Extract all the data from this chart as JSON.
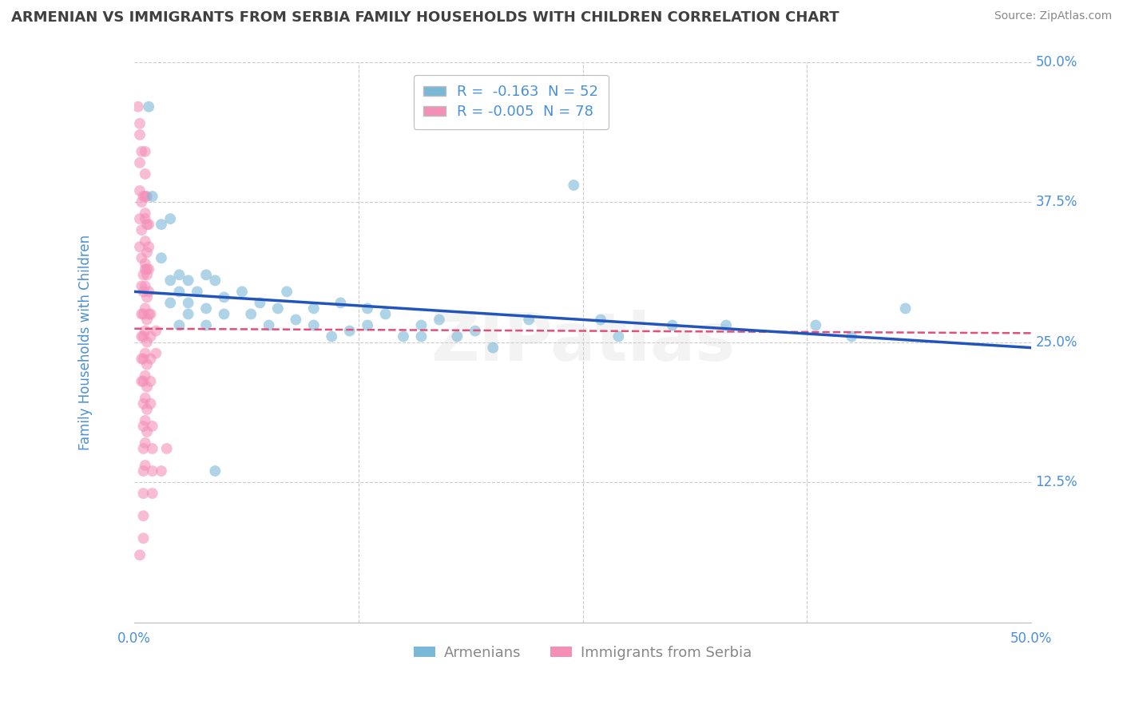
{
  "title": "ARMENIAN VS IMMIGRANTS FROM SERBIA FAMILY HOUSEHOLDS WITH CHILDREN CORRELATION CHART",
  "source": "Source: ZipAtlas.com",
  "ylabel": "Family Households with Children",
  "xlim": [
    0,
    0.5
  ],
  "ylim": [
    0,
    0.5
  ],
  "yticks": [
    0.125,
    0.25,
    0.375,
    0.5
  ],
  "ytick_labels": [
    "12.5%",
    "25.0%",
    "37.5%",
    "50.0%"
  ],
  "legend_entries": [
    {
      "label": "R =  -0.163  N = 52",
      "color": "#a8c8e8"
    },
    {
      "label": "R = -0.005  N = 78",
      "color": "#f9b8cc"
    }
  ],
  "armenian_scatter": [
    [
      0.008,
      0.46
    ],
    [
      0.01,
      0.38
    ],
    [
      0.015,
      0.355
    ],
    [
      0.015,
      0.325
    ],
    [
      0.02,
      0.36
    ],
    [
      0.02,
      0.305
    ],
    [
      0.02,
      0.285
    ],
    [
      0.025,
      0.31
    ],
    [
      0.025,
      0.295
    ],
    [
      0.025,
      0.265
    ],
    [
      0.03,
      0.305
    ],
    [
      0.03,
      0.285
    ],
    [
      0.03,
      0.275
    ],
    [
      0.035,
      0.295
    ],
    [
      0.04,
      0.31
    ],
    [
      0.04,
      0.28
    ],
    [
      0.04,
      0.265
    ],
    [
      0.045,
      0.305
    ],
    [
      0.05,
      0.29
    ],
    [
      0.05,
      0.275
    ],
    [
      0.06,
      0.295
    ],
    [
      0.065,
      0.275
    ],
    [
      0.07,
      0.285
    ],
    [
      0.075,
      0.265
    ],
    [
      0.08,
      0.28
    ],
    [
      0.085,
      0.295
    ],
    [
      0.09,
      0.27
    ],
    [
      0.1,
      0.28
    ],
    [
      0.1,
      0.265
    ],
    [
      0.11,
      0.255
    ],
    [
      0.115,
      0.285
    ],
    [
      0.12,
      0.26
    ],
    [
      0.13,
      0.28
    ],
    [
      0.13,
      0.265
    ],
    [
      0.14,
      0.275
    ],
    [
      0.15,
      0.255
    ],
    [
      0.16,
      0.265
    ],
    [
      0.16,
      0.255
    ],
    [
      0.17,
      0.27
    ],
    [
      0.18,
      0.255
    ],
    [
      0.19,
      0.26
    ],
    [
      0.2,
      0.245
    ],
    [
      0.22,
      0.27
    ],
    [
      0.26,
      0.27
    ],
    [
      0.27,
      0.255
    ],
    [
      0.3,
      0.265
    ],
    [
      0.33,
      0.265
    ],
    [
      0.38,
      0.265
    ],
    [
      0.4,
      0.255
    ],
    [
      0.43,
      0.28
    ],
    [
      0.245,
      0.39
    ],
    [
      0.045,
      0.135
    ]
  ],
  "armenia_line_x": [
    0.0,
    0.5
  ],
  "armenia_line_y": [
    0.295,
    0.245
  ],
  "serbia_scatter": [
    [
      0.002,
      0.46
    ],
    [
      0.003,
      0.435
    ],
    [
      0.003,
      0.41
    ],
    [
      0.003,
      0.385
    ],
    [
      0.003,
      0.36
    ],
    [
      0.003,
      0.335
    ],
    [
      0.004,
      0.375
    ],
    [
      0.004,
      0.35
    ],
    [
      0.004,
      0.325
    ],
    [
      0.004,
      0.3
    ],
    [
      0.004,
      0.275
    ],
    [
      0.004,
      0.255
    ],
    [
      0.004,
      0.235
    ],
    [
      0.004,
      0.215
    ],
    [
      0.005,
      0.295
    ],
    [
      0.005,
      0.275
    ],
    [
      0.005,
      0.255
    ],
    [
      0.005,
      0.235
    ],
    [
      0.005,
      0.215
    ],
    [
      0.005,
      0.195
    ],
    [
      0.005,
      0.175
    ],
    [
      0.005,
      0.155
    ],
    [
      0.005,
      0.135
    ],
    [
      0.005,
      0.115
    ],
    [
      0.005,
      0.095
    ],
    [
      0.006,
      0.42
    ],
    [
      0.006,
      0.4
    ],
    [
      0.006,
      0.38
    ],
    [
      0.006,
      0.36
    ],
    [
      0.006,
      0.34
    ],
    [
      0.006,
      0.32
    ],
    [
      0.006,
      0.3
    ],
    [
      0.006,
      0.28
    ],
    [
      0.006,
      0.26
    ],
    [
      0.006,
      0.24
    ],
    [
      0.006,
      0.22
    ],
    [
      0.006,
      0.2
    ],
    [
      0.006,
      0.18
    ],
    [
      0.006,
      0.16
    ],
    [
      0.006,
      0.14
    ],
    [
      0.007,
      0.38
    ],
    [
      0.007,
      0.355
    ],
    [
      0.007,
      0.33
    ],
    [
      0.007,
      0.31
    ],
    [
      0.007,
      0.29
    ],
    [
      0.007,
      0.27
    ],
    [
      0.007,
      0.25
    ],
    [
      0.007,
      0.23
    ],
    [
      0.007,
      0.21
    ],
    [
      0.007,
      0.19
    ],
    [
      0.007,
      0.17
    ],
    [
      0.008,
      0.355
    ],
    [
      0.008,
      0.335
    ],
    [
      0.008,
      0.315
    ],
    [
      0.008,
      0.295
    ],
    [
      0.009,
      0.275
    ],
    [
      0.009,
      0.255
    ],
    [
      0.009,
      0.235
    ],
    [
      0.009,
      0.215
    ],
    [
      0.009,
      0.195
    ],
    [
      0.01,
      0.175
    ],
    [
      0.01,
      0.155
    ],
    [
      0.01,
      0.135
    ],
    [
      0.01,
      0.115
    ],
    [
      0.012,
      0.26
    ],
    [
      0.012,
      0.24
    ],
    [
      0.015,
      0.135
    ],
    [
      0.018,
      0.155
    ],
    [
      0.003,
      0.445
    ],
    [
      0.004,
      0.42
    ],
    [
      0.005,
      0.38
    ],
    [
      0.006,
      0.365
    ],
    [
      0.005,
      0.31
    ],
    [
      0.006,
      0.315
    ],
    [
      0.007,
      0.315
    ],
    [
      0.008,
      0.275
    ],
    [
      0.003,
      0.06
    ],
    [
      0.005,
      0.075
    ]
  ],
  "serbia_line_x": [
    0.0,
    0.5
  ],
  "serbia_line_y": [
    0.262,
    0.258
  ],
  "scatter_alpha": 0.6,
  "scatter_size": 100,
  "armenian_color": "#7ab8d8",
  "serbia_color": "#f490b8",
  "armenia_line_color": "#2255bb",
  "serbia_line_color": "#e0507a",
  "watermark": "ZIPatlas",
  "background_color": "#ffffff",
  "grid_color": "#cccccc",
  "title_color": "#404040",
  "axis_label_color": "#4a90d9",
  "tick_color": "#888888"
}
